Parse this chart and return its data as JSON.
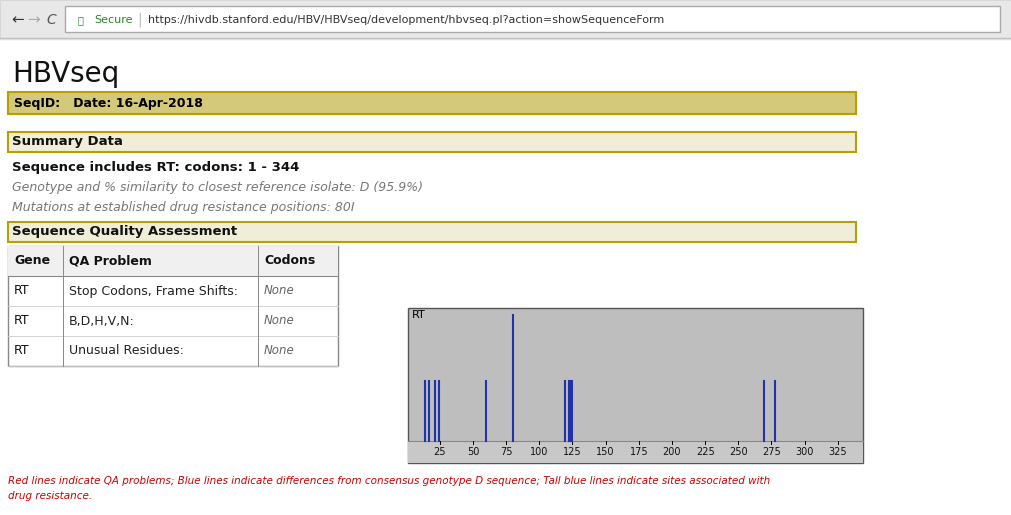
{
  "browser_url": "https://hivdb.stanford.edu/HBV/HBVseq/development/hbvseq.pl?action=showSequenceForm",
  "page_title": "HBVseq",
  "seqid_label": "SeqID:   Date: 16-Apr-2018",
  "summary_data_label": "Summary Data",
  "seq_includes": "Sequence includes RT: codons: 1 - 344",
  "genotype_line": "Genotype and % similarity to closest reference isolate: D (95.9%)",
  "mutations_line": "Mutations at established drug resistance positions: 80I",
  "quality_label": "Sequence Quality Assessment",
  "table_headers": [
    "Gene",
    "QA Problem",
    "Codons"
  ],
  "table_rows": [
    [
      "RT",
      "Stop Codons, Frame Shifts:",
      "None"
    ],
    [
      "RT",
      "B,D,H,V,N:",
      "None"
    ],
    [
      "RT",
      "Unusual Residues:",
      "None"
    ]
  ],
  "footer_line1": "Red lines indicate QA problems; Blue lines indicate differences from consensus genotype D sequence; Tall blue lines indicate sites associated with",
  "footer_line2": "drug resistance.",
  "chart_label": "RT",
  "chart_bg": "#bebebe",
  "chart_tick_bg": "#c8c8c8",
  "chart_border": "#555555",
  "line_color": "#2233aa",
  "x_ticks": [
    25,
    50,
    75,
    100,
    125,
    150,
    175,
    200,
    225,
    250,
    275,
    300,
    325
  ],
  "normal_lines": [
    14,
    17,
    21,
    24,
    60,
    119,
    122,
    123,
    125,
    269,
    278
  ],
  "tall_line": 80,
  "background_color": "#ffffff",
  "gold_border": "#b8a000",
  "seqid_bg": "#d4c87a",
  "summary_bg": "#f0edd8",
  "nav_bg": "#e8e8e8",
  "nav_border": "#cccccc",
  "url_bar_bg": "#ffffff",
  "url_bar_border": "#aaaaaa"
}
